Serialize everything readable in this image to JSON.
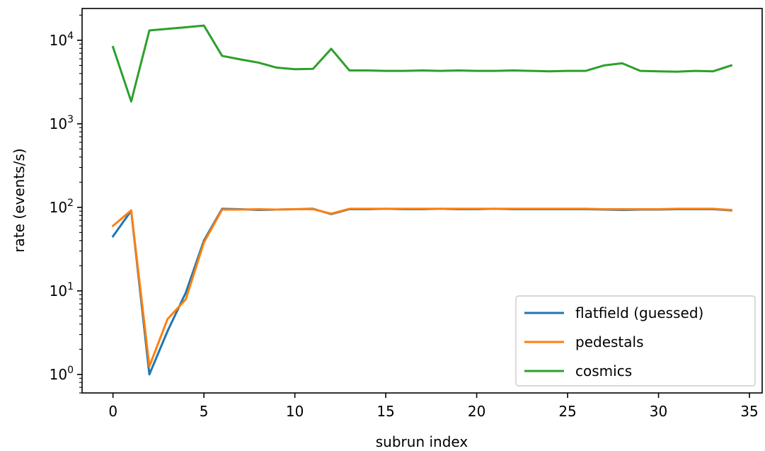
{
  "chart_data": {
    "type": "line",
    "title": "",
    "xlabel": "subrun index",
    "ylabel": "rate (events/s)",
    "xlim": [
      -1.7,
      35.7
    ],
    "ylim": [
      0.6,
      24000
    ],
    "yscale": "log",
    "grid": false,
    "legend_position": "bottom-right",
    "x_ticks": [
      0,
      5,
      10,
      15,
      20,
      25,
      30,
      35
    ],
    "x_tick_labels": [
      "0",
      "5",
      "10",
      "15",
      "20",
      "25",
      "30",
      "35"
    ],
    "y_ticks": [
      1,
      10,
      100,
      1000,
      10000
    ],
    "y_tick_labels": [
      {
        "base": "10",
        "exp": "0"
      },
      {
        "base": "10",
        "exp": "1"
      },
      {
        "base": "10",
        "exp": "2"
      },
      {
        "base": "10",
        "exp": "3"
      },
      {
        "base": "10",
        "exp": "4"
      }
    ],
    "x": [
      0,
      1,
      2,
      3,
      4,
      5,
      6,
      7,
      8,
      9,
      10,
      11,
      12,
      13,
      14,
      15,
      16,
      17,
      18,
      19,
      20,
      21,
      22,
      23,
      24,
      25,
      26,
      27,
      28,
      29,
      30,
      31,
      32,
      33,
      34
    ],
    "series": [
      {
        "name": "flatfield (guessed)",
        "color": "#1f77b4",
        "values": [
          45,
          91,
          1.0,
          3.3,
          9.5,
          40,
          96,
          95,
          93,
          94,
          95,
          96,
          83,
          95,
          95,
          96,
          95,
          95,
          96,
          95,
          95,
          96,
          95,
          95,
          95,
          95,
          95,
          94,
          93,
          94,
          94,
          95,
          95,
          95,
          92
        ]
      },
      {
        "name": "pedestals",
        "color": "#ff7f0e",
        "values": [
          60,
          92,
          1.25,
          4.6,
          7.9,
          38,
          94,
          94,
          95,
          94,
          95,
          95,
          84,
          96,
          96,
          96,
          96,
          96,
          96,
          96,
          96,
          96,
          96,
          96,
          96,
          96,
          96,
          95,
          95,
          95,
          95,
          96,
          96,
          96,
          93
        ]
      },
      {
        "name": "cosmics",
        "color": "#2ca02c",
        "values": [
          8300,
          1850,
          13100,
          13700,
          14300,
          15000,
          6500,
          5900,
          5400,
          4700,
          4500,
          4550,
          7900,
          4350,
          4350,
          4300,
          4300,
          4350,
          4300,
          4350,
          4300,
          4300,
          4350,
          4300,
          4250,
          4300,
          4300,
          5000,
          5300,
          4300,
          4250,
          4200,
          4300,
          4250,
          5000
        ]
      }
    ]
  }
}
